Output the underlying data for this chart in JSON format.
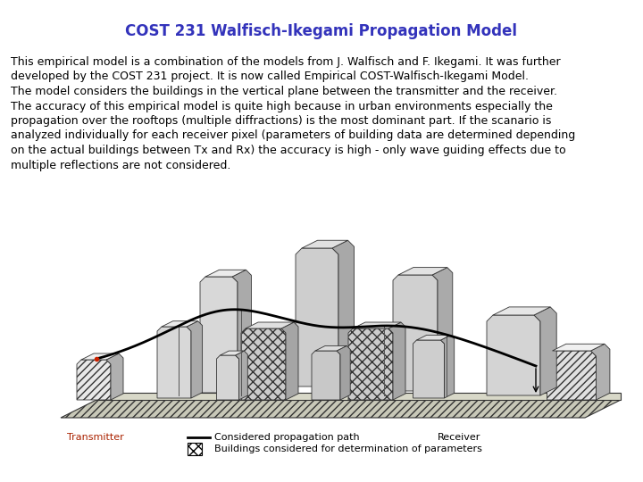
{
  "title": "COST 231 Walfisch-Ikegami Propagation Model",
  "title_color": "#3333BB",
  "title_fontsize": 12,
  "body_text": "This empirical model is a combination of the models from J. Walfisch and F. Ikegami. It was further\ndeveloped by the COST 231 project. It is now called Empirical COST-Walfisch-Ikegami Model.\nThe model considers the buildings in the vertical plane between the transmitter and the receiver.\nThe accuracy of this empirical model is quite high because in urban environments especially the\npropagation over the rooftops (multiple diffractions) is the most dominant part. If the scanario is\nanalyzed individually for each receiver pixel (parameters of building data are determined depending\non the actual buildings between Tx and Rx) the accuracy is high - only wave guiding effects due to\nmultiple reflections are not considered.",
  "body_fontsize": 9,
  "body_color": "#000000",
  "background_color": "#ffffff",
  "legend_transmitter": "Transmitter",
  "legend_transmitter_color": "#AA2200",
  "legend_path": "Considered propagation path",
  "legend_receiver": "Receiver",
  "legend_buildings": "Buildings considered for determination of parameters",
  "legend_fontsize": 8
}
